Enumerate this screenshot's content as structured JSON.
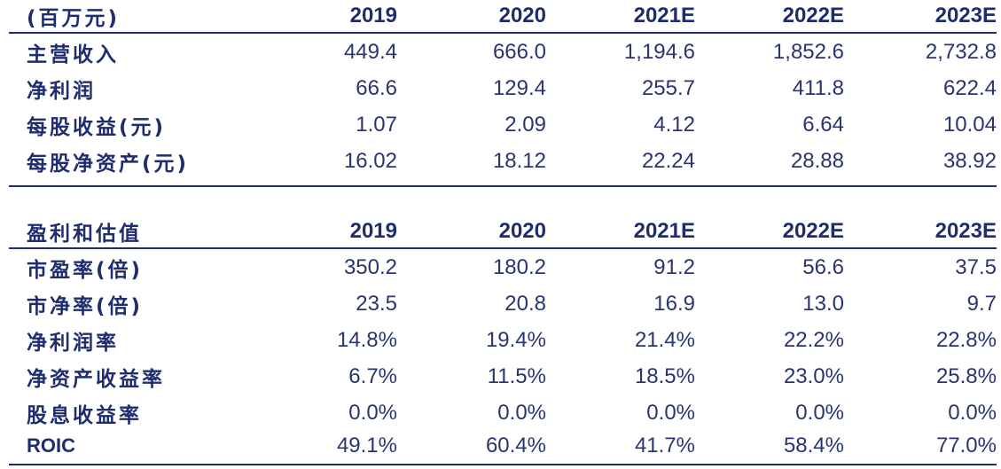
{
  "forecast_table": {
    "header": [
      "(百万元)",
      "2019",
      "2020",
      "2021E",
      "2022E",
      "2023E"
    ],
    "rows": [
      [
        "主营收入",
        "449.4",
        "666.0",
        "1,194.6",
        "1,852.6",
        "2,732.8"
      ],
      [
        "净利润",
        "66.6",
        "129.4",
        "255.7",
        "411.8",
        "622.4"
      ],
      [
        "每股收益(元)",
        "1.07",
        "2.09",
        "4.12",
        "6.64",
        "10.04"
      ],
      [
        "每股净资产(元)",
        "16.02",
        "18.12",
        "22.24",
        "28.88",
        "38.92"
      ]
    ]
  },
  "valuation_table": {
    "header": [
      "盈利和估值",
      "2019",
      "2020",
      "2021E",
      "2022E",
      "2023E"
    ],
    "rows": [
      [
        "市盈率(倍)",
        "350.2",
        "180.2",
        "91.2",
        "56.6",
        "37.5"
      ],
      [
        "市净率(倍)",
        "23.5",
        "20.8",
        "16.9",
        "13.0",
        "9.7"
      ],
      [
        "净利润率",
        "14.8%",
        "19.4%",
        "21.4%",
        "22.2%",
        "22.8%"
      ],
      [
        "净资产收益率",
        "6.7%",
        "11.5%",
        "18.5%",
        "23.0%",
        "25.8%"
      ],
      [
        "股息收益率",
        "0.0%",
        "0.0%",
        "0.0%",
        "0.0%",
        "0.0%"
      ],
      [
        "ROIC",
        "49.1%",
        "60.4%",
        "41.7%",
        "58.4%",
        "77.0%"
      ]
    ]
  },
  "colors": {
    "text": "#1f2d6e",
    "rule": "#1f2d6e"
  }
}
